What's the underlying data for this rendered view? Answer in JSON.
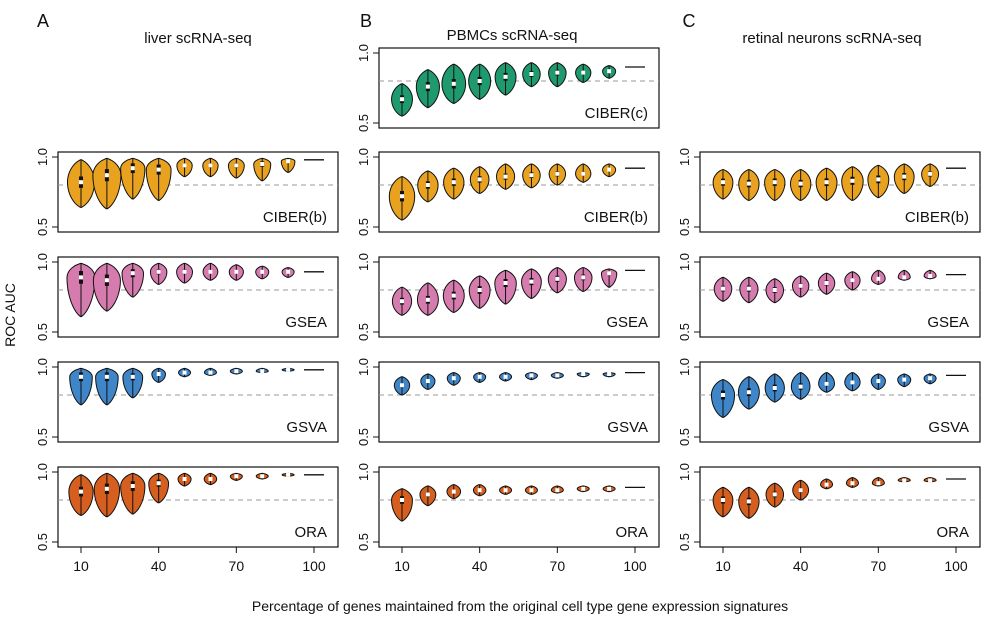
{
  "figure": {
    "xlabel": "Percentage of genes maintained from the original cell type gene expression signatures",
    "ylabel": "ROC AUC",
    "reference_line": 0.8
  },
  "colors": {
    "CIBER(c)": "#1f9a6e",
    "CIBER(b)": "#e9a21f",
    "GSEA": "#d67bae",
    "GSVA": "#3f86c9",
    "ORA": "#d65f1f"
  },
  "columns": [
    {
      "letter": "A",
      "title": "liver scRNA-seq"
    },
    {
      "letter": "B",
      "title": "PBMCs scRNA-seq"
    },
    {
      "letter": "C",
      "title": "retinal neurons scRNA-seq"
    }
  ],
  "chart_data": {
    "type": "violin",
    "x": [
      10,
      20,
      30,
      40,
      50,
      60,
      70,
      80,
      90,
      100
    ],
    "x_tick_labels": [
      "10",
      "40",
      "70",
      "100"
    ],
    "y_ticks": [
      "0.5",
      "1.0"
    ],
    "ylim": [
      0.5,
      1.0
    ],
    "panels": [
      {
        "column": 0,
        "row": 1,
        "method": "CIBER(b)",
        "medians": [
          0.82,
          0.87,
          0.92,
          0.91,
          0.94,
          0.94,
          0.94,
          0.95,
          0.97,
          0.98
        ],
        "mins": [
          0.64,
          0.63,
          0.7,
          0.69,
          0.86,
          0.86,
          0.85,
          0.83,
          0.89,
          0.98
        ],
        "maxs": [
          0.98,
          0.99,
          0.99,
          0.99,
          0.99,
          0.99,
          0.99,
          0.99,
          0.99,
          0.98
        ]
      },
      {
        "column": 0,
        "row": 2,
        "method": "GSEA",
        "medians": [
          0.89,
          0.87,
          0.92,
          0.93,
          0.93,
          0.93,
          0.93,
          0.93,
          0.93,
          0.93
        ],
        "mins": [
          0.61,
          0.65,
          0.75,
          0.84,
          0.85,
          0.87,
          0.87,
          0.88,
          0.89,
          0.93
        ],
        "maxs": [
          0.99,
          0.99,
          0.99,
          0.99,
          0.99,
          0.99,
          0.98,
          0.97,
          0.96,
          0.93
        ]
      },
      {
        "column": 0,
        "row": 3,
        "method": "GSVA",
        "medians": [
          0.93,
          0.93,
          0.93,
          0.95,
          0.96,
          0.96,
          0.97,
          0.97,
          0.98,
          0.98
        ],
        "mins": [
          0.73,
          0.73,
          0.78,
          0.89,
          0.93,
          0.94,
          0.95,
          0.96,
          0.97,
          0.98
        ],
        "maxs": [
          0.99,
          0.99,
          0.99,
          0.99,
          0.99,
          0.99,
          0.99,
          0.99,
          0.99,
          0.98
        ]
      },
      {
        "column": 0,
        "row": 4,
        "method": "ORA",
        "medians": [
          0.86,
          0.88,
          0.9,
          0.92,
          0.95,
          0.95,
          0.97,
          0.97,
          0.98,
          0.98
        ],
        "mins": [
          0.69,
          0.68,
          0.7,
          0.78,
          0.9,
          0.91,
          0.94,
          0.95,
          0.97,
          0.98
        ],
        "maxs": [
          0.98,
          0.99,
          0.99,
          0.99,
          0.99,
          0.99,
          0.99,
          0.99,
          0.99,
          0.98
        ]
      },
      {
        "column": 1,
        "row": 0,
        "method": "CIBER(c)",
        "medians": [
          0.67,
          0.76,
          0.78,
          0.8,
          0.83,
          0.85,
          0.86,
          0.86,
          0.87,
          0.9
        ],
        "mins": [
          0.55,
          0.61,
          0.64,
          0.67,
          0.7,
          0.76,
          0.76,
          0.79,
          0.82,
          0.9
        ],
        "maxs": [
          0.78,
          0.88,
          0.92,
          0.92,
          0.93,
          0.93,
          0.93,
          0.92,
          0.91,
          0.9
        ]
      },
      {
        "column": 1,
        "row": 1,
        "method": "CIBER(b)",
        "medians": [
          0.72,
          0.8,
          0.82,
          0.84,
          0.86,
          0.87,
          0.88,
          0.88,
          0.91,
          0.92
        ],
        "mins": [
          0.55,
          0.68,
          0.7,
          0.74,
          0.77,
          0.78,
          0.8,
          0.82,
          0.86,
          0.92
        ],
        "maxs": [
          0.86,
          0.9,
          0.92,
          0.93,
          0.95,
          0.95,
          0.95,
          0.95,
          0.95,
          0.92
        ]
      },
      {
        "column": 1,
        "row": 2,
        "method": "GSEA",
        "medians": [
          0.72,
          0.73,
          0.76,
          0.8,
          0.85,
          0.86,
          0.88,
          0.89,
          0.92,
          0.94
        ],
        "mins": [
          0.62,
          0.62,
          0.64,
          0.67,
          0.7,
          0.74,
          0.78,
          0.79,
          0.82,
          0.94
        ],
        "maxs": [
          0.82,
          0.85,
          0.87,
          0.9,
          0.94,
          0.95,
          0.96,
          0.96,
          0.95,
          0.94
        ]
      },
      {
        "column": 1,
        "row": 3,
        "method": "GSVA",
        "medians": [
          0.87,
          0.9,
          0.92,
          0.93,
          0.93,
          0.94,
          0.94,
          0.95,
          0.95,
          0.96
        ],
        "mins": [
          0.8,
          0.84,
          0.87,
          0.89,
          0.9,
          0.91,
          0.92,
          0.93,
          0.93,
          0.96
        ],
        "maxs": [
          0.93,
          0.95,
          0.96,
          0.96,
          0.96,
          0.96,
          0.96,
          0.96,
          0.96,
          0.96
        ]
      },
      {
        "column": 1,
        "row": 4,
        "method": "ORA",
        "medians": [
          0.8,
          0.84,
          0.86,
          0.87,
          0.87,
          0.87,
          0.87,
          0.88,
          0.88,
          0.89
        ],
        "mins": [
          0.65,
          0.76,
          0.81,
          0.83,
          0.84,
          0.84,
          0.85,
          0.86,
          0.86,
          0.89
        ],
        "maxs": [
          0.88,
          0.9,
          0.91,
          0.91,
          0.9,
          0.9,
          0.9,
          0.9,
          0.9,
          0.89
        ]
      },
      {
        "column": 2,
        "row": 1,
        "method": "CIBER(b)",
        "medians": [
          0.82,
          0.81,
          0.82,
          0.81,
          0.82,
          0.83,
          0.84,
          0.86,
          0.88,
          0.92
        ],
        "mins": [
          0.7,
          0.69,
          0.69,
          0.69,
          0.69,
          0.69,
          0.71,
          0.74,
          0.79,
          0.92
        ],
        "maxs": [
          0.91,
          0.91,
          0.91,
          0.91,
          0.92,
          0.93,
          0.94,
          0.95,
          0.95,
          0.92
        ]
      },
      {
        "column": 2,
        "row": 2,
        "method": "GSEA",
        "medians": [
          0.81,
          0.81,
          0.8,
          0.83,
          0.85,
          0.87,
          0.88,
          0.89,
          0.9,
          0.91
        ],
        "mins": [
          0.72,
          0.71,
          0.71,
          0.75,
          0.77,
          0.8,
          0.84,
          0.87,
          0.88,
          0.91
        ],
        "maxs": [
          0.89,
          0.89,
          0.88,
          0.9,
          0.92,
          0.93,
          0.94,
          0.94,
          0.94,
          0.91
        ]
      },
      {
        "column": 2,
        "row": 3,
        "method": "GSVA",
        "medians": [
          0.8,
          0.82,
          0.85,
          0.86,
          0.88,
          0.89,
          0.9,
          0.91,
          0.92,
          0.94
        ],
        "mins": [
          0.64,
          0.7,
          0.75,
          0.77,
          0.82,
          0.83,
          0.84,
          0.86,
          0.88,
          0.94
        ],
        "maxs": [
          0.91,
          0.93,
          0.95,
          0.96,
          0.96,
          0.96,
          0.95,
          0.95,
          0.95,
          0.94
        ]
      },
      {
        "column": 2,
        "row": 4,
        "method": "ORA",
        "medians": [
          0.8,
          0.79,
          0.84,
          0.87,
          0.91,
          0.92,
          0.92,
          0.94,
          0.94,
          0.95
        ],
        "mins": [
          0.68,
          0.67,
          0.75,
          0.8,
          0.88,
          0.89,
          0.9,
          0.93,
          0.93,
          0.95
        ],
        "maxs": [
          0.89,
          0.89,
          0.92,
          0.94,
          0.95,
          0.96,
          0.96,
          0.96,
          0.96,
          0.95
        ]
      }
    ]
  }
}
